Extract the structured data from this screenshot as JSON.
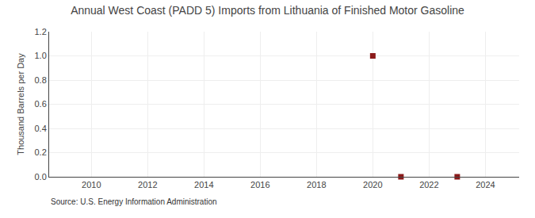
{
  "chart_data": {
    "type": "scatter",
    "title": "Annual West Coast (PADD 5) Imports from Lithuania of Finished Motor Gasoline",
    "ylabel": "Thousand Barrels per Day",
    "annotation": "Source: U.S. Energy Information Administration",
    "x": [
      2020,
      2021,
      2023
    ],
    "values": [
      1.0,
      0.0,
      0.0
    ],
    "color": "#8b1a1a",
    "marker": "square",
    "xlim": [
      2008.5,
      2025.2
    ],
    "ylim": [
      0.0,
      1.2
    ],
    "xticks": [
      2010,
      2012,
      2014,
      2016,
      2018,
      2020,
      2022,
      2024
    ],
    "yticks": [
      {
        "value": 0.0,
        "label": "0.0"
      },
      0.2,
      0.4,
      0.6,
      0.8,
      {
        "value": 1.0,
        "label": "1.0"
      },
      1.2
    ],
    "grid": true
  }
}
